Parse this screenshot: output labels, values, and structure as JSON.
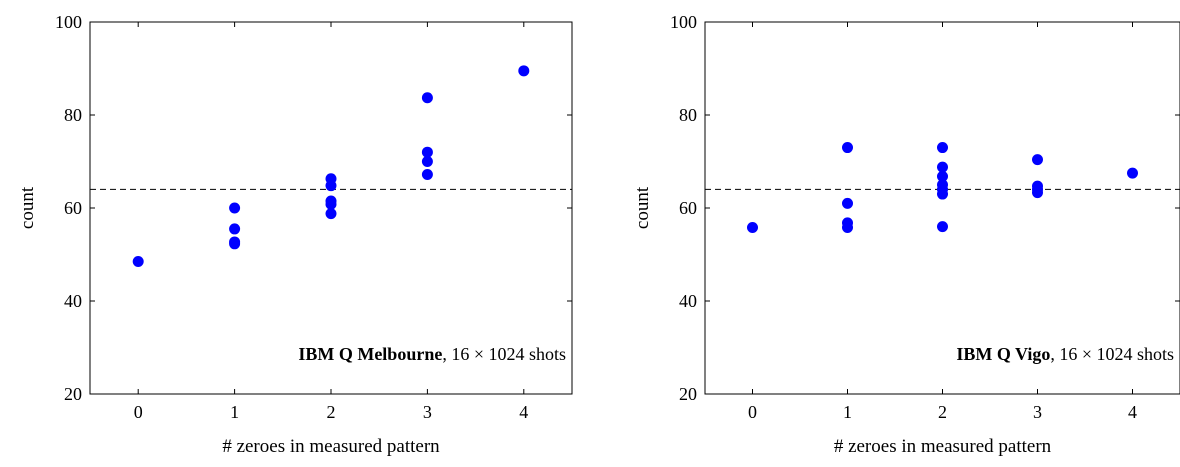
{
  "chart_data": [
    {
      "type": "scatter",
      "xlabel": "# zeroes in measured pattern",
      "ylabel": "count",
      "xlim": [
        -0.5,
        4.5
      ],
      "ylim": [
        20,
        100
      ],
      "xticks": [
        0,
        1,
        2,
        3,
        4
      ],
      "yticks": [
        20,
        40,
        60,
        80,
        100
      ],
      "reference_line": {
        "y": 64,
        "style": "dashed"
      },
      "annotation": {
        "bold": "IBM Q Melbourne",
        "rest": ", 16 × 1024 shots"
      },
      "point_color": "#0000ff",
      "points": [
        {
          "x": 0,
          "y": 48.5
        },
        {
          "x": 1,
          "y": 60
        },
        {
          "x": 1,
          "y": 55.5
        },
        {
          "x": 1,
          "y": 52.7
        },
        {
          "x": 1,
          "y": 52.3
        },
        {
          "x": 2,
          "y": 66.3
        },
        {
          "x": 2,
          "y": 64.8
        },
        {
          "x": 2,
          "y": 61.5
        },
        {
          "x": 2,
          "y": 60.8
        },
        {
          "x": 2,
          "y": 58.8
        },
        {
          "x": 3,
          "y": 83.7
        },
        {
          "x": 3,
          "y": 72
        },
        {
          "x": 3,
          "y": 70
        },
        {
          "x": 3,
          "y": 67.2
        },
        {
          "x": 4,
          "y": 89.5
        }
      ]
    },
    {
      "type": "scatter",
      "xlabel": "# zeroes in measured pattern",
      "ylabel": "count",
      "xlim": [
        -0.5,
        4.5
      ],
      "ylim": [
        20,
        100
      ],
      "xticks": [
        0,
        1,
        2,
        3,
        4
      ],
      "yticks": [
        20,
        40,
        60,
        80,
        100
      ],
      "reference_line": {
        "y": 64,
        "style": "dashed"
      },
      "annotation": {
        "bold": "IBM Q Vigo",
        "rest": ", 16 × 1024 shots"
      },
      "point_color": "#0000ff",
      "points": [
        {
          "x": 0,
          "y": 55.8
        },
        {
          "x": 1,
          "y": 73
        },
        {
          "x": 1,
          "y": 61
        },
        {
          "x": 1,
          "y": 56.8
        },
        {
          "x": 1,
          "y": 55.8
        },
        {
          "x": 2,
          "y": 73
        },
        {
          "x": 2,
          "y": 68.8
        },
        {
          "x": 2,
          "y": 66.8
        },
        {
          "x": 2,
          "y": 65
        },
        {
          "x": 2,
          "y": 64
        },
        {
          "x": 2,
          "y": 63
        },
        {
          "x": 2,
          "y": 56
        },
        {
          "x": 3,
          "y": 70.4
        },
        {
          "x": 3,
          "y": 64.7
        },
        {
          "x": 3,
          "y": 64
        },
        {
          "x": 3,
          "y": 63.3
        },
        {
          "x": 4,
          "y": 67.5
        }
      ]
    }
  ]
}
